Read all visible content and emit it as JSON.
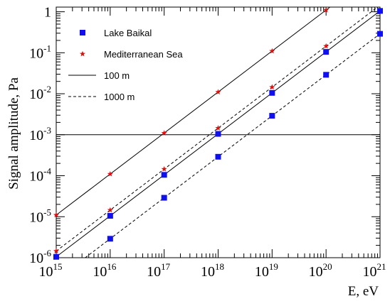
{
  "chart_data": {
    "type": "scatter",
    "xlabel": "E, eV",
    "ylabel": "Signal amplitude, Pa",
    "xscale": "log",
    "yscale": "log",
    "xlim": [
      1000000000000000.0,
      1e+21
    ],
    "ylim": [
      1e-06,
      1.3
    ],
    "x_tick_exponents": [
      15,
      16,
      17,
      18,
      19,
      20,
      21
    ],
    "y_ticks": [
      {
        "value": 1e-06,
        "mantissa": "10",
        "exp": "-6"
      },
      {
        "value": 1e-05,
        "mantissa": "10",
        "exp": "-5"
      },
      {
        "value": 0.0001,
        "mantissa": "10",
        "exp": "-4"
      },
      {
        "value": 0.001,
        "mantissa": "10",
        "exp": "-3"
      },
      {
        "value": 0.01,
        "mantissa": "10",
        "exp": "-2"
      },
      {
        "value": 0.1,
        "mantissa": "10",
        "exp": "-1"
      },
      {
        "value": 1,
        "mantissa": "1",
        "exp": ""
      }
    ],
    "threshold": 0.001,
    "legend_position": "top-left",
    "legend": [
      {
        "label": "Lake Baikal",
        "kind": "square-marker"
      },
      {
        "label": "Mediterranean Sea",
        "kind": "star-marker"
      },
      {
        "label": "100 m",
        "kind": "solid-line"
      },
      {
        "label": "1000 m",
        "kind": "dashed-line"
      }
    ],
    "series": [
      {
        "name": "Lake Baikal",
        "distance": "100 m",
        "marker": "square",
        "color": "#1010ee",
        "x": [
          1000000000000000.0,
          1e+16,
          1e+17,
          1e+18,
          1e+19,
          1e+20,
          1e+21
        ],
        "y": [
          1.05e-06,
          1.05e-05,
          0.000105,
          0.00105,
          0.0105,
          0.105,
          1.05
        ]
      },
      {
        "name": "Lake Baikal",
        "distance": "1000 m",
        "marker": "square",
        "color": "#1010ee",
        "x": [
          1e+16,
          1e+17,
          1e+18,
          1e+19,
          1e+20,
          1e+21
        ],
        "y": [
          2.9e-06,
          2.9e-05,
          0.00029,
          0.0029,
          0.029,
          0.29
        ]
      },
      {
        "name": "Mediterranean Sea",
        "distance": "100 m",
        "marker": "star",
        "color": "#e01010",
        "x": [
          1000000000000000.0,
          1e+16,
          1e+17,
          1e+18,
          1e+19,
          1e+20
        ],
        "y": [
          1.1e-05,
          0.00011,
          0.0011,
          0.011,
          0.11,
          1.1
        ]
      },
      {
        "name": "Mediterranean Sea",
        "distance": "1000 m",
        "marker": "star",
        "color": "#e01010",
        "x": [
          1000000000000000.0,
          1e+16,
          1e+17,
          1e+18,
          1e+19,
          1e+20
        ],
        "y": [
          1.45e-06,
          1.45e-05,
          0.000145,
          0.00145,
          0.0145,
          0.145
        ]
      }
    ],
    "fit_lines": [
      {
        "name": "Mediterranean Sea 100 m fit",
        "style": "solid",
        "x": [
          1000000000000000.0,
          1.18e+20
        ],
        "y": [
          1.1e-05,
          1.3
        ]
      },
      {
        "name": "Mediterranean Sea 1000 m fit",
        "style": "dashed",
        "x": [
          1000000000000000.0,
          8.97e+20
        ],
        "y": [
          1.45e-06,
          1.3
        ]
      },
      {
        "name": "Lake Baikal 100 m fit",
        "style": "solid",
        "x": [
          1000000000000000.0,
          1e+21
        ],
        "y": [
          1.05e-06,
          1.05
        ]
      },
      {
        "name": "Lake Baikal 1000 m fit",
        "style": "dashed",
        "x": [
          3450000000000000.0,
          1e+21
        ],
        "y": [
          1e-06,
          0.29
        ]
      }
    ]
  }
}
